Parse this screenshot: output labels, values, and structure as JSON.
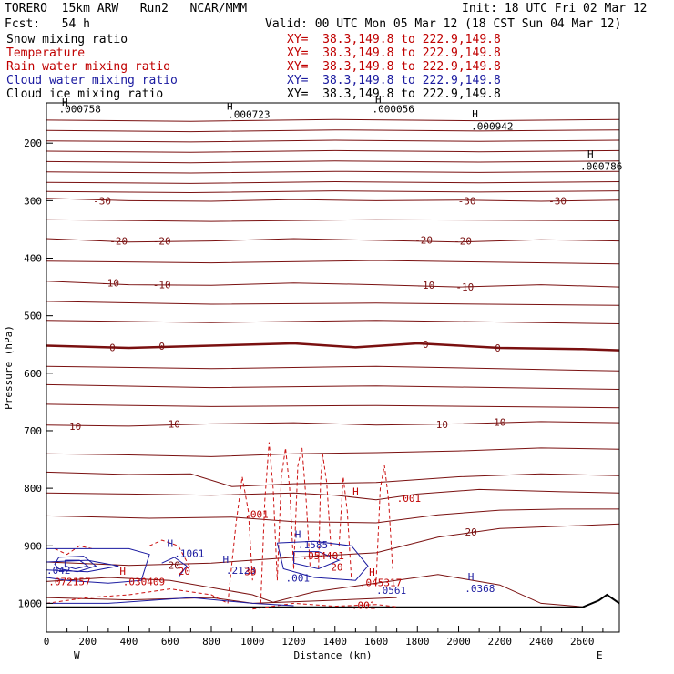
{
  "header": {
    "model": "TORERO  15km ARW   Run2   NCAR/MMM",
    "init": "Init: 18 UTC Fri 02 Mar 12",
    "fcst": "Fcst:   54 h",
    "valid": "Valid: 00 UTC Mon 05 Mar 12 (18 CST Sun 04 Mar 12)"
  },
  "legend": [
    {
      "name": "Snow mixing ratio",
      "xy": "XY=  38.3,149.8 to 222.9,149.8",
      "color": "#000000"
    },
    {
      "name": "Temperature",
      "xy": "XY=  38.3,149.8 to 222.9,149.8",
      "color": "#c00000"
    },
    {
      "name": "Rain water mixing ratio",
      "xy": "XY=  38.3,149.8 to 222.9,149.8",
      "color": "#c00000"
    },
    {
      "name": "Cloud water mixing ratio",
      "xy": "XY=  38.3,149.8 to 222.9,149.8",
      "color": "#1a1aa0"
    },
    {
      "name": "Cloud ice mixing ratio",
      "xy": "XY=  38.3,149.8 to 222.9,149.8",
      "color": "#000000"
    }
  ],
  "chart_data": {
    "type": "line",
    "xlabel": "Distance (km)",
    "ylabel": "Pressure (hPa)",
    "xlim": [
      0,
      2780
    ],
    "ylim": [
      1050,
      130
    ],
    "x_ticks": [
      0,
      200,
      400,
      600,
      800,
      1000,
      1200,
      1400,
      1600,
      1800,
      2000,
      2200,
      2400,
      2600
    ],
    "y_ticks": [
      200,
      300,
      400,
      500,
      600,
      700,
      800,
      900,
      1000
    ],
    "x_end_labels": {
      "left": "W",
      "right": "E"
    },
    "temperature_contours": [
      {
        "level": -30,
        "labels": [
          "-30",
          "-30",
          "-30"
        ],
        "label_x": [
          270,
          2040,
          2480
        ],
        "label_p": [
          300,
          300,
          300
        ],
        "points": [
          [
            0,
            296
          ],
          [
            400,
            300
          ],
          [
            800,
            301
          ],
          [
            1200,
            298
          ],
          [
            1600,
            300
          ],
          [
            2000,
            299
          ],
          [
            2400,
            301
          ],
          [
            2780,
            299
          ]
        ]
      },
      {
        "level": -20,
        "labels": [
          "-20",
          "-20",
          "-20",
          "-20"
        ],
        "label_x": [
          350,
          560,
          1830,
          2020
        ],
        "label_p": [
          370,
          370,
          368,
          370
        ],
        "points": [
          [
            0,
            366
          ],
          [
            400,
            372
          ],
          [
            800,
            370
          ],
          [
            1200,
            366
          ],
          [
            1600,
            369
          ],
          [
            2000,
            372
          ],
          [
            2400,
            368
          ],
          [
            2780,
            370
          ]
        ]
      },
      {
        "level": -10,
        "labels": [
          "-10",
          "-10",
          "-10",
          "-10"
        ],
        "label_x": [
          310,
          560,
          1840,
          2030
        ],
        "label_p": [
          443,
          446,
          447,
          450
        ],
        "points": [
          [
            0,
            440
          ],
          [
            400,
            446
          ],
          [
            800,
            447
          ],
          [
            1200,
            443
          ],
          [
            1600,
            446
          ],
          [
            2000,
            450
          ],
          [
            2400,
            446
          ],
          [
            2780,
            450
          ]
        ]
      },
      {
        "level": 0,
        "labels": [
          "0",
          "0",
          "0",
          "0"
        ],
        "label_x": [
          320,
          560,
          1840,
          2190
        ],
        "label_p": [
          555,
          553,
          550,
          556
        ],
        "points": [
          [
            0,
            552
          ],
          [
            400,
            556
          ],
          [
            800,
            552
          ],
          [
            1200,
            548
          ],
          [
            1500,
            555
          ],
          [
            1800,
            548
          ],
          [
            2200,
            556
          ],
          [
            2600,
            558
          ],
          [
            2780,
            560
          ]
        ]
      },
      {
        "level": 10,
        "labels": [
          "10",
          "10",
          "10",
          "10"
        ],
        "label_x": [
          140,
          620,
          1920,
          2200
        ],
        "label_p": [
          692,
          688,
          689,
          685
        ],
        "points": [
          [
            0,
            690
          ],
          [
            400,
            692
          ],
          [
            800,
            688
          ],
          [
            1200,
            686
          ],
          [
            1600,
            690
          ],
          [
            2000,
            688
          ],
          [
            2400,
            684
          ],
          [
            2780,
            686
          ]
        ]
      },
      {
        "level": 20,
        "labels": [
          "20",
          "20"
        ],
        "label_x": [
          620,
          2060
        ],
        "label_p": [
          934,
          876
        ],
        "points": [
          [
            0,
            928
          ],
          [
            400,
            934
          ],
          [
            800,
            930
          ],
          [
            1200,
            920
          ],
          [
            1600,
            912
          ],
          [
            1900,
            885
          ],
          [
            2200,
            870
          ],
          [
            2500,
            866
          ],
          [
            2780,
            862
          ]
        ]
      }
    ],
    "other_isotherms_points_count": 20,
    "max_labels": [
      {
        "text": ".000723",
        "x": 880,
        "p": 150,
        "color": "#000000"
      },
      {
        "text": ".000942",
        "x": 2060,
        "p": 170,
        "color": "#000000"
      },
      {
        "text": ".000786",
        "x": 2590,
        "p": 240,
        "color": "#000000"
      },
      {
        "text": ".000758",
        "x": 60,
        "p": 140,
        "color": "#000000"
      },
      {
        "text": ".000056",
        "x": 1580,
        "p": 140,
        "color": "#000000"
      },
      {
        "text": ".001",
        "x": 960,
        "p": 845,
        "color": "#c00000"
      },
      {
        "text": ".001",
        "x": 1700,
        "p": 817,
        "color": "#c00000"
      },
      {
        "text": ".1061",
        "x": 620,
        "p": 913,
        "color": "#1a1aa0"
      },
      {
        "text": ".1585",
        "x": 1220,
        "p": 898,
        "color": "#1a1aa0"
      },
      {
        "text": ".054401",
        "x": 1240,
        "p": 917,
        "color": "#c00000"
      },
      {
        "text": ".030409",
        "x": 370,
        "p": 962,
        "color": "#c00000"
      },
      {
        "text": ".072157",
        "x": 10,
        "p": 962,
        "color": "#c00000"
      },
      {
        "text": ".2123",
        "x": 870,
        "p": 942,
        "color": "#1a1aa0"
      },
      {
        "text": ".045317",
        "x": 1520,
        "p": 964,
        "color": "#c00000"
      },
      {
        "text": ".0561",
        "x": 1600,
        "p": 977,
        "color": "#1a1aa0"
      },
      {
        "text": ".0368",
        "x": 2030,
        "p": 974,
        "color": "#1a1aa0"
      },
      {
        "text": ".001",
        "x": 1160,
        "p": 956,
        "color": "#1a1aa0"
      },
      {
        "text": ".001",
        "x": 1480,
        "p": 1003,
        "color": "#c00000"
      },
      {
        "text": "30",
        "x": 960,
        "p": 945,
        "color": "#c00000"
      },
      {
        "text": "20",
        "x": 1380,
        "p": 937,
        "color": "#c00000"
      },
      {
        "text": "20",
        "x": 640,
        "p": 944,
        "color": "#c00000"
      },
      {
        "text": ".042",
        "x": 0,
        "p": 942,
        "color": "#1a1aa0"
      }
    ],
    "highs": [
      {
        "x": 90,
        "p": 135,
        "color": "#000000"
      },
      {
        "x": 890,
        "p": 142,
        "color": "#000000"
      },
      {
        "x": 2080,
        "p": 155,
        "color": "#000000"
      },
      {
        "x": 2640,
        "p": 225,
        "color": "#000000"
      },
      {
        "x": 1610,
        "p": 130,
        "color": "#000000"
      },
      {
        "x": 600,
        "p": 902,
        "color": "#1a1aa0"
      },
      {
        "x": 1220,
        "p": 886,
        "color": "#1a1aa0"
      },
      {
        "x": 870,
        "p": 930,
        "color": "#1a1aa0"
      },
      {
        "x": 2060,
        "p": 960,
        "color": "#1a1aa0"
      },
      {
        "x": 370,
        "p": 950,
        "color": "#c00000"
      },
      {
        "x": 1580,
        "p": 952,
        "color": "#c00000"
      },
      {
        "x": 1500,
        "p": 812,
        "color": "#c00000"
      }
    ]
  }
}
